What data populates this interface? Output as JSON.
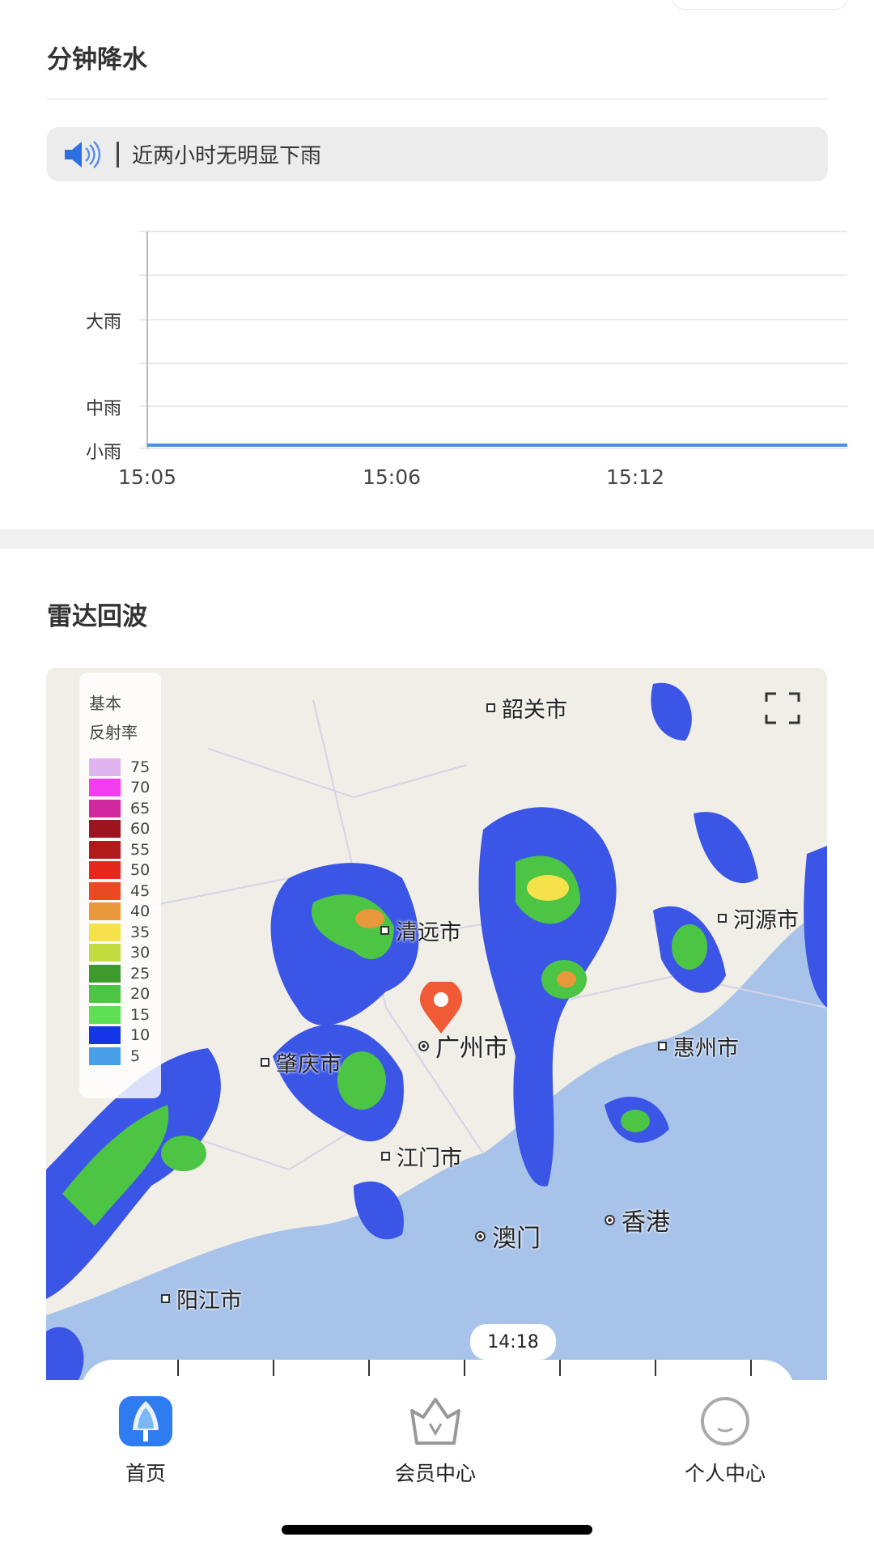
{
  "minute_precip": {
    "title": "分钟降水",
    "notice": "近两小时无明显下雨",
    "notice_icon": "speaker-icon"
  },
  "chart_data": {
    "type": "line",
    "title": "",
    "xlabel": "",
    "ylabel": "",
    "x_ticks": [
      "15:05",
      "15:06",
      "15:12"
    ],
    "y_ticks": [
      "小雨",
      "中雨",
      "大雨"
    ],
    "series": [
      {
        "values": [
          0,
          0,
          0,
          0
        ],
        "color": "#4a90e2"
      }
    ],
    "grid": true
  },
  "radar": {
    "title": "雷达回波",
    "legend_title_1": "基本",
    "legend_title_2": "反射率",
    "legend": [
      {
        "v": "75",
        "c": "#e0b4f0"
      },
      {
        "v": "70",
        "c": "#f23cf2"
      },
      {
        "v": "65",
        "c": "#d0279f"
      },
      {
        "v": "60",
        "c": "#9c1420"
      },
      {
        "v": "55",
        "c": "#b01a1a"
      },
      {
        "v": "50",
        "c": "#e6271e"
      },
      {
        "v": "45",
        "c": "#ea4a22"
      },
      {
        "v": "40",
        "c": "#e8973a"
      },
      {
        "v": "35",
        "c": "#f5e24a"
      },
      {
        "v": "30",
        "c": "#c0dc3e"
      },
      {
        "v": "25",
        "c": "#3f9a2e"
      },
      {
        "v": "20",
        "c": "#4cc444"
      },
      {
        "v": "15",
        "c": "#5ee054"
      },
      {
        "v": "10",
        "c": "#1336e6"
      },
      {
        "v": "5",
        "c": "#48a0ea"
      }
    ],
    "cities": [
      "韶关市",
      "清远市",
      "河源市",
      "广州市",
      "惠州市",
      "肇庆市",
      "江门市",
      "澳门",
      "香港",
      "阳江市"
    ],
    "time": "14:18"
  },
  "nav": {
    "items": [
      {
        "label": "首页",
        "active": true
      },
      {
        "label": "会员中心"
      },
      {
        "label": "个人中心"
      }
    ],
    "accent": "#2f7bf0"
  }
}
